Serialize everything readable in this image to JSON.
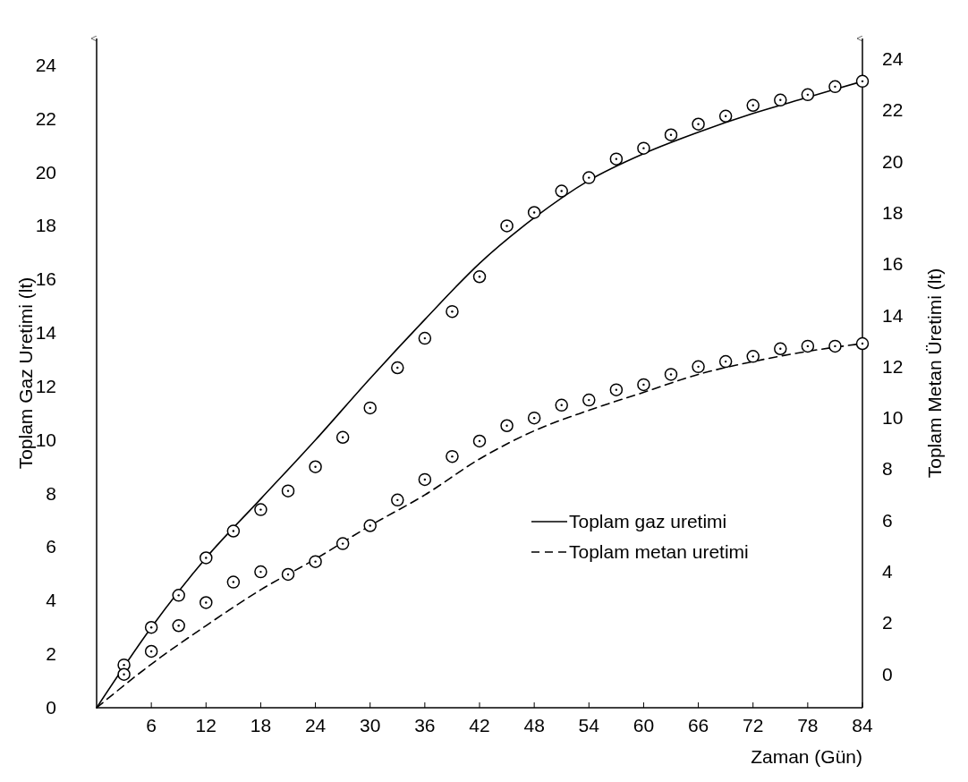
{
  "chart_data": {
    "type": "line",
    "xlabel": "Zaman (Gün)",
    "ylabel": "Toplam Gaz Uretimi (lt)",
    "y2label": "Toplam Metan Üretimi (lt)",
    "xlim": [
      0,
      84
    ],
    "xticks": [
      6,
      12,
      18,
      24,
      30,
      36,
      42,
      48,
      54,
      60,
      66,
      72,
      78,
      84
    ],
    "ylim": [
      0,
      25
    ],
    "yticks": [
      0,
      2,
      4,
      6,
      8,
      10,
      12,
      14,
      16,
      18,
      20,
      22,
      24
    ],
    "y2lim": [
      -1.3,
      24.8
    ],
    "y2ticks": [
      0,
      2,
      4,
      6,
      8,
      10,
      12,
      14,
      16,
      18,
      20,
      22,
      24
    ],
    "legend": "bottom right",
    "grid": false,
    "series": [
      {
        "name": "Toplam gaz uretimi",
        "color": "#000000",
        "line_style": "solid",
        "marker": "none",
        "x": [
          0,
          6,
          12,
          18,
          24,
          30,
          36,
          42,
          48,
          54,
          60,
          66,
          72,
          78,
          84
        ],
        "values": [
          0,
          3.0,
          5.6,
          7.8,
          10.0,
          12.3,
          14.5,
          16.6,
          18.3,
          19.7,
          20.7,
          21.5,
          22.2,
          22.8,
          23.4
        ]
      },
      {
        "name": "Toplam metan uretimi",
        "axis": "y2",
        "color": "#000000",
        "line_style": "dashed",
        "marker": "none",
        "x": [
          0,
          6,
          12,
          18,
          24,
          30,
          36,
          42,
          48,
          54,
          60,
          66,
          72,
          78,
          84
        ],
        "values": [
          -1.3,
          0.4,
          1.9,
          3.3,
          4.5,
          5.8,
          7.0,
          8.4,
          9.5,
          10.3,
          11.0,
          11.7,
          12.2,
          12.6,
          12.9
        ]
      },
      {
        "type": "scatter",
        "color": "#000000",
        "marker": "circle",
        "x": [
          3,
          6,
          9,
          12,
          15,
          18,
          21,
          24,
          27,
          30,
          33,
          36,
          39,
          42,
          45,
          48,
          51,
          54,
          57,
          60,
          63,
          66,
          69,
          72,
          75,
          78,
          81,
          84
        ],
        "values": [
          1.6,
          3.0,
          4.2,
          5.6,
          6.6,
          7.4,
          8.1,
          9.0,
          10.1,
          11.2,
          12.7,
          13.8,
          14.8,
          16.1,
          18.0,
          18.5,
          19.3,
          19.8,
          20.5,
          20.9,
          21.4,
          21.8,
          22.1,
          22.5,
          22.7,
          22.9,
          23.2,
          23.4
        ]
      },
      {
        "type": "scatter",
        "axis": "y2",
        "color": "#000000",
        "marker": "circle",
        "x": [
          3,
          6,
          9,
          12,
          15,
          18,
          21,
          24,
          27,
          30,
          33,
          36,
          39,
          42,
          45,
          48,
          51,
          54,
          57,
          60,
          63,
          66,
          69,
          72,
          75,
          78,
          81,
          84
        ],
        "values": [
          0.0,
          0.9,
          1.9,
          2.8,
          3.6,
          4.0,
          3.9,
          4.4,
          5.1,
          5.8,
          6.8,
          7.6,
          8.5,
          9.1,
          9.7,
          10.0,
          10.5,
          10.7,
          11.1,
          11.3,
          11.7,
          12.0,
          12.2,
          12.4,
          12.7,
          12.8,
          12.8,
          12.9
        ]
      }
    ]
  }
}
